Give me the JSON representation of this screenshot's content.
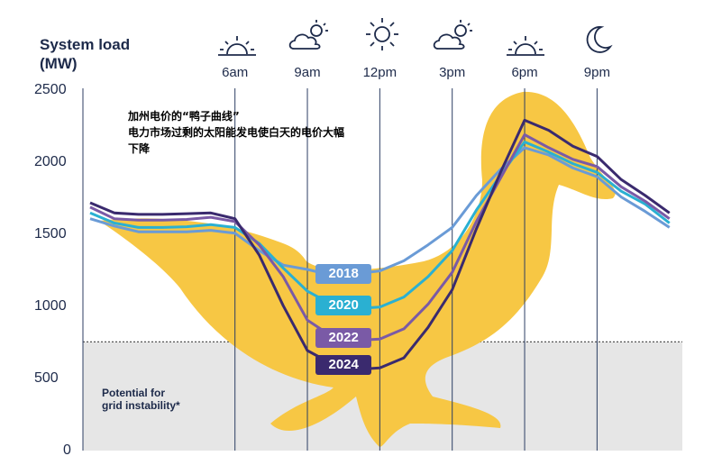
{
  "header": {
    "y_axis_title_line1": "System load",
    "y_axis_title_line2": "(MW)"
  },
  "annotation": {
    "line1": "加州电价的“鸭子曲线”",
    "line2": "电力市场过剩的太阳能发电使白天的电价大幅",
    "line3": "下降"
  },
  "risk_zone": {
    "line1": "Potential for",
    "line2": "grid instability*",
    "threshold": 750,
    "color": "#e6e6e6"
  },
  "times": [
    {
      "label": "6am",
      "icon": "sunrise-icon"
    },
    {
      "label": "9am",
      "icon": "partly-cloudy-icon"
    },
    {
      "label": "12pm",
      "icon": "sun-icon"
    },
    {
      "label": "3pm",
      "icon": "partly-cloudy-icon"
    },
    {
      "label": "6pm",
      "icon": "sunset-icon"
    },
    {
      "label": "9pm",
      "icon": "moon-icon"
    }
  ],
  "colors": {
    "duck": "#f7c744",
    "axis_text": "#1d2a4a",
    "gridline": "#2c3e63"
  },
  "chart_data": {
    "type": "line",
    "title": "",
    "xlabel": "",
    "ylabel": "System load (MW)",
    "x_range": [
      0,
      24
    ],
    "ylim": [
      0,
      2500
    ],
    "y_ticks": [
      "0",
      "500",
      "1000",
      "1500",
      "2000",
      "2500"
    ],
    "x_ticks": [
      {
        "hour": 6,
        "label": "6am"
      },
      {
        "hour": 9,
        "label": "9am"
      },
      {
        "hour": 12,
        "label": "12pm"
      },
      {
        "hour": 15,
        "label": "3pm"
      },
      {
        "hour": 18,
        "label": "6pm"
      },
      {
        "hour": 21,
        "label": "9pm"
      }
    ],
    "series": [
      {
        "name": "2018",
        "color": "#6a9bd6",
        "label_hour": 10.5,
        "label_value": 1220,
        "points": [
          [
            0,
            1600
          ],
          [
            1,
            1550
          ],
          [
            2,
            1510
          ],
          [
            3,
            1510
          ],
          [
            4,
            1510
          ],
          [
            5,
            1520
          ],
          [
            6,
            1500
          ],
          [
            7,
            1380
          ],
          [
            8,
            1280
          ],
          [
            9,
            1250
          ],
          [
            10,
            1210
          ],
          [
            11,
            1220
          ],
          [
            12,
            1240
          ],
          [
            13,
            1310
          ],
          [
            14,
            1420
          ],
          [
            15,
            1540
          ],
          [
            16,
            1760
          ],
          [
            17,
            1940
          ],
          [
            18,
            2090
          ],
          [
            19,
            2040
          ],
          [
            20,
            1950
          ],
          [
            21,
            1890
          ],
          [
            22,
            1750
          ],
          [
            23,
            1650
          ],
          [
            24,
            1540
          ]
        ]
      },
      {
        "name": "2020",
        "color": "#2ab0d2",
        "label_hour": 10.5,
        "label_value": 1000,
        "points": [
          [
            0,
            1640
          ],
          [
            1,
            1570
          ],
          [
            2,
            1540
          ],
          [
            3,
            1540
          ],
          [
            4,
            1545
          ],
          [
            5,
            1560
          ],
          [
            6,
            1540
          ],
          [
            7,
            1430
          ],
          [
            8,
            1260
          ],
          [
            9,
            1100
          ],
          [
            10,
            1010
          ],
          [
            11,
            980
          ],
          [
            12,
            990
          ],
          [
            13,
            1060
          ],
          [
            14,
            1200
          ],
          [
            15,
            1380
          ],
          [
            16,
            1660
          ],
          [
            17,
            1900
          ],
          [
            18,
            2130
          ],
          [
            19,
            2060
          ],
          [
            20,
            1980
          ],
          [
            21,
            1920
          ],
          [
            22,
            1790
          ],
          [
            23,
            1700
          ],
          [
            24,
            1570
          ]
        ]
      },
      {
        "name": "2022",
        "color": "#7a5aa6",
        "label_hour": 10.5,
        "label_value": 780,
        "points": [
          [
            0,
            1680
          ],
          [
            1,
            1600
          ],
          [
            2,
            1590
          ],
          [
            3,
            1590
          ],
          [
            4,
            1595
          ],
          [
            5,
            1610
          ],
          [
            6,
            1580
          ],
          [
            7,
            1420
          ],
          [
            8,
            1200
          ],
          [
            9,
            900
          ],
          [
            10,
            790
          ],
          [
            11,
            760
          ],
          [
            12,
            770
          ],
          [
            13,
            840
          ],
          [
            14,
            1010
          ],
          [
            15,
            1230
          ],
          [
            16,
            1580
          ],
          [
            17,
            1880
          ],
          [
            18,
            2180
          ],
          [
            19,
            2090
          ],
          [
            20,
            2010
          ],
          [
            21,
            1960
          ],
          [
            22,
            1820
          ],
          [
            23,
            1720
          ],
          [
            24,
            1600
          ]
        ]
      },
      {
        "name": "2024",
        "color": "#3a2a6e",
        "label_hour": 10.5,
        "label_value": 590,
        "points": [
          [
            0,
            1710
          ],
          [
            1,
            1640
          ],
          [
            2,
            1630
          ],
          [
            3,
            1630
          ],
          [
            4,
            1635
          ],
          [
            5,
            1640
          ],
          [
            6,
            1600
          ],
          [
            7,
            1350
          ],
          [
            8,
            1000
          ],
          [
            9,
            690
          ],
          [
            10,
            600
          ],
          [
            11,
            560
          ],
          [
            12,
            570
          ],
          [
            13,
            640
          ],
          [
            14,
            850
          ],
          [
            15,
            1110
          ],
          [
            16,
            1530
          ],
          [
            17,
            1920
          ],
          [
            18,
            2280
          ],
          [
            19,
            2210
          ],
          [
            20,
            2100
          ],
          [
            21,
            2030
          ],
          [
            22,
            1870
          ],
          [
            23,
            1760
          ],
          [
            24,
            1640
          ]
        ]
      }
    ]
  }
}
